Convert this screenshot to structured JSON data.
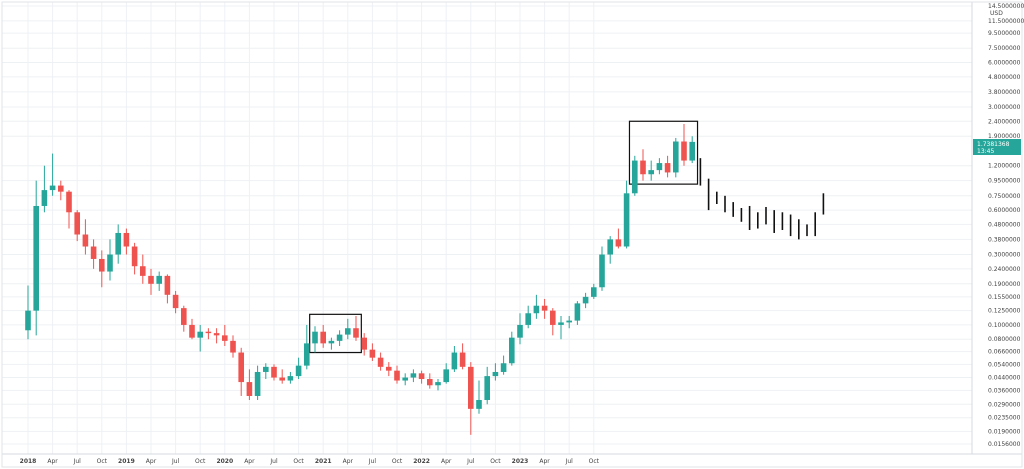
{
  "chart_data": {
    "type": "candlestick",
    "y_scale": "log",
    "ylim": [
      0.0156,
      14.5
    ],
    "y_unit": "USD",
    "y_ticks": [
      {
        "v": 14.5,
        "label": "14.5000000"
      },
      {
        "v": 11.5,
        "label": "11.5000000"
      },
      {
        "v": 9.5,
        "label": "9.5000000"
      },
      {
        "v": 7.5,
        "label": "7.5000000"
      },
      {
        "v": 6.0,
        "label": "6.0000000"
      },
      {
        "v": 4.8,
        "label": "4.8000000"
      },
      {
        "v": 3.8,
        "label": "3.8000000"
      },
      {
        "v": 3.0,
        "label": "3.0000000"
      },
      {
        "v": 2.4,
        "label": "2.4000000"
      },
      {
        "v": 1.9,
        "label": "1.9000000"
      },
      {
        "v": 1.2,
        "label": "1.2000000"
      },
      {
        "v": 0.95,
        "label": "0.9500000"
      },
      {
        "v": 0.75,
        "label": "0.7500000"
      },
      {
        "v": 0.6,
        "label": "0.6000000"
      },
      {
        "v": 0.48,
        "label": "0.4800000"
      },
      {
        "v": 0.38,
        "label": "0.3800000"
      },
      {
        "v": 0.3,
        "label": "0.3000000"
      },
      {
        "v": 0.24,
        "label": "0.2400000"
      },
      {
        "v": 0.19,
        "label": "0.1900000"
      },
      {
        "v": 0.155,
        "label": "0.1550000"
      },
      {
        "v": 0.125,
        "label": "0.1250000"
      },
      {
        "v": 0.1,
        "label": "0.1000000"
      },
      {
        "v": 0.08,
        "label": "0.0800000"
      },
      {
        "v": 0.066,
        "label": "0.0660000"
      },
      {
        "v": 0.054,
        "label": "0.0540000"
      },
      {
        "v": 0.044,
        "label": "0.0440000"
      },
      {
        "v": 0.036,
        "label": "0.0360000"
      },
      {
        "v": 0.029,
        "label": "0.0290000"
      },
      {
        "v": 0.0235,
        "label": "0.0235000"
      },
      {
        "v": 0.019,
        "label": "0.0190000"
      },
      {
        "v": 0.0156,
        "label": "0.0156000"
      }
    ],
    "x_ticks": [
      "2018",
      "Apr",
      "Jul",
      "Oct",
      "2019",
      "Apr",
      "Jul",
      "Oct",
      "2020",
      "Apr",
      "Jul",
      "Oct",
      "2021",
      "Apr",
      "Jul",
      "Oct",
      "2022",
      "Apr",
      "Jul",
      "Oct",
      "2023",
      "Apr",
      "Jul",
      "Oct"
    ],
    "last_price": {
      "value": "1.7381368",
      "sub": "13:45"
    },
    "colors": {
      "up": "#26a69a",
      "down": "#ef5350",
      "frame": "#111111",
      "grid": "#eef1f4",
      "price_tag": "#26a69a",
      "projection": "#111111"
    },
    "candles": [
      {
        "x": 0,
        "o": 0.092,
        "h": 0.185,
        "l": 0.08,
        "c": 0.125
      },
      {
        "x": 1,
        "o": 0.125,
        "h": 0.95,
        "l": 0.085,
        "c": 0.64
      },
      {
        "x": 2,
        "o": 0.64,
        "h": 1.2,
        "l": 0.58,
        "c": 0.82
      },
      {
        "x": 3,
        "o": 0.82,
        "h": 1.45,
        "l": 0.75,
        "c": 0.88
      },
      {
        "x": 4,
        "o": 0.88,
        "h": 0.95,
        "l": 0.7,
        "c": 0.8
      },
      {
        "x": 5,
        "o": 0.8,
        "h": 0.82,
        "l": 0.45,
        "c": 0.58
      },
      {
        "x": 6,
        "o": 0.58,
        "h": 0.6,
        "l": 0.37,
        "c": 0.41
      },
      {
        "x": 7,
        "o": 0.41,
        "h": 0.52,
        "l": 0.3,
        "c": 0.34
      },
      {
        "x": 8,
        "o": 0.34,
        "h": 0.38,
        "l": 0.24,
        "c": 0.28
      },
      {
        "x": 9,
        "o": 0.28,
        "h": 0.32,
        "l": 0.18,
        "c": 0.23
      },
      {
        "x": 10,
        "o": 0.23,
        "h": 0.38,
        "l": 0.2,
        "c": 0.3
      },
      {
        "x": 11,
        "o": 0.3,
        "h": 0.48,
        "l": 0.26,
        "c": 0.42
      },
      {
        "x": 12,
        "o": 0.42,
        "h": 0.45,
        "l": 0.3,
        "c": 0.34
      },
      {
        "x": 13,
        "o": 0.34,
        "h": 0.36,
        "l": 0.22,
        "c": 0.25
      },
      {
        "x": 14,
        "o": 0.25,
        "h": 0.3,
        "l": 0.19,
        "c": 0.215
      },
      {
        "x": 15,
        "o": 0.215,
        "h": 0.24,
        "l": 0.16,
        "c": 0.19
      },
      {
        "x": 16,
        "o": 0.19,
        "h": 0.23,
        "l": 0.17,
        "c": 0.215
      },
      {
        "x": 17,
        "o": 0.215,
        "h": 0.22,
        "l": 0.14,
        "c": 0.16
      },
      {
        "x": 18,
        "o": 0.16,
        "h": 0.17,
        "l": 0.12,
        "c": 0.13
      },
      {
        "x": 19,
        "o": 0.13,
        "h": 0.135,
        "l": 0.09,
        "c": 0.1
      },
      {
        "x": 20,
        "o": 0.1,
        "h": 0.11,
        "l": 0.08,
        "c": 0.082
      },
      {
        "x": 21,
        "o": 0.082,
        "h": 0.1,
        "l": 0.066,
        "c": 0.09
      },
      {
        "x": 22,
        "o": 0.09,
        "h": 0.095,
        "l": 0.08,
        "c": 0.088
      },
      {
        "x": 23,
        "o": 0.088,
        "h": 0.095,
        "l": 0.075,
        "c": 0.085
      },
      {
        "x": 24,
        "o": 0.085,
        "h": 0.1,
        "l": 0.072,
        "c": 0.078
      },
      {
        "x": 25,
        "o": 0.078,
        "h": 0.085,
        "l": 0.06,
        "c": 0.065
      },
      {
        "x": 26,
        "o": 0.065,
        "h": 0.07,
        "l": 0.033,
        "c": 0.041
      },
      {
        "x": 27,
        "o": 0.041,
        "h": 0.05,
        "l": 0.031,
        "c": 0.033
      },
      {
        "x": 28,
        "o": 0.033,
        "h": 0.053,
        "l": 0.031,
        "c": 0.048
      },
      {
        "x": 29,
        "o": 0.048,
        "h": 0.055,
        "l": 0.043,
        "c": 0.052
      },
      {
        "x": 30,
        "o": 0.052,
        "h": 0.054,
        "l": 0.042,
        "c": 0.044
      },
      {
        "x": 31,
        "o": 0.044,
        "h": 0.05,
        "l": 0.04,
        "c": 0.042
      },
      {
        "x": 32,
        "o": 0.042,
        "h": 0.048,
        "l": 0.04,
        "c": 0.045
      },
      {
        "x": 33,
        "o": 0.045,
        "h": 0.06,
        "l": 0.043,
        "c": 0.053
      },
      {
        "x": 34,
        "o": 0.053,
        "h": 0.1,
        "l": 0.05,
        "c": 0.075
      },
      {
        "x": 35,
        "o": 0.075,
        "h": 0.098,
        "l": 0.065,
        "c": 0.09
      },
      {
        "x": 36,
        "o": 0.09,
        "h": 0.1,
        "l": 0.07,
        "c": 0.075
      },
      {
        "x": 37,
        "o": 0.075,
        "h": 0.082,
        "l": 0.068,
        "c": 0.078
      },
      {
        "x": 38,
        "o": 0.078,
        "h": 0.092,
        "l": 0.072,
        "c": 0.086
      },
      {
        "x": 39,
        "o": 0.086,
        "h": 0.11,
        "l": 0.08,
        "c": 0.095
      },
      {
        "x": 40,
        "o": 0.095,
        "h": 0.115,
        "l": 0.078,
        "c": 0.082
      },
      {
        "x": 41,
        "o": 0.082,
        "h": 0.088,
        "l": 0.062,
        "c": 0.068
      },
      {
        "x": 42,
        "o": 0.068,
        "h": 0.075,
        "l": 0.057,
        "c": 0.06
      },
      {
        "x": 43,
        "o": 0.06,
        "h": 0.065,
        "l": 0.049,
        "c": 0.052
      },
      {
        "x": 44,
        "o": 0.052,
        "h": 0.056,
        "l": 0.045,
        "c": 0.049
      },
      {
        "x": 45,
        "o": 0.049,
        "h": 0.053,
        "l": 0.04,
        "c": 0.042
      },
      {
        "x": 46,
        "o": 0.042,
        "h": 0.047,
        "l": 0.039,
        "c": 0.044
      },
      {
        "x": 47,
        "o": 0.044,
        "h": 0.05,
        "l": 0.041,
        "c": 0.047
      },
      {
        "x": 48,
        "o": 0.047,
        "h": 0.049,
        "l": 0.04,
        "c": 0.043
      },
      {
        "x": 49,
        "o": 0.043,
        "h": 0.047,
        "l": 0.037,
        "c": 0.039
      },
      {
        "x": 50,
        "o": 0.039,
        "h": 0.043,
        "l": 0.036,
        "c": 0.041
      },
      {
        "x": 51,
        "o": 0.041,
        "h": 0.055,
        "l": 0.04,
        "c": 0.05
      },
      {
        "x": 52,
        "o": 0.05,
        "h": 0.072,
        "l": 0.048,
        "c": 0.065
      },
      {
        "x": 53,
        "o": 0.065,
        "h": 0.075,
        "l": 0.05,
        "c": 0.052
      },
      {
        "x": 54,
        "o": 0.052,
        "h": 0.056,
        "l": 0.018,
        "c": 0.027
      },
      {
        "x": 55,
        "o": 0.027,
        "h": 0.042,
        "l": 0.025,
        "c": 0.031
      },
      {
        "x": 56,
        "o": 0.031,
        "h": 0.052,
        "l": 0.029,
        "c": 0.045
      },
      {
        "x": 57,
        "o": 0.045,
        "h": 0.055,
        "l": 0.042,
        "c": 0.048
      },
      {
        "x": 58,
        "o": 0.048,
        "h": 0.062,
        "l": 0.046,
        "c": 0.055
      },
      {
        "x": 59,
        "o": 0.055,
        "h": 0.09,
        "l": 0.053,
        "c": 0.082
      },
      {
        "x": 60,
        "o": 0.082,
        "h": 0.12,
        "l": 0.074,
        "c": 0.1
      },
      {
        "x": 61,
        "o": 0.1,
        "h": 0.135,
        "l": 0.095,
        "c": 0.12
      },
      {
        "x": 62,
        "o": 0.12,
        "h": 0.16,
        "l": 0.11,
        "c": 0.135
      },
      {
        "x": 63,
        "o": 0.135,
        "h": 0.15,
        "l": 0.11,
        "c": 0.125
      },
      {
        "x": 64,
        "o": 0.125,
        "h": 0.13,
        "l": 0.085,
        "c": 0.1
      },
      {
        "x": 65,
        "o": 0.1,
        "h": 0.115,
        "l": 0.08,
        "c": 0.104
      },
      {
        "x": 66,
        "o": 0.104,
        "h": 0.115,
        "l": 0.095,
        "c": 0.107
      },
      {
        "x": 67,
        "o": 0.107,
        "h": 0.145,
        "l": 0.1,
        "c": 0.14
      },
      {
        "x": 68,
        "o": 0.14,
        "h": 0.165,
        "l": 0.13,
        "c": 0.155
      },
      {
        "x": 69,
        "o": 0.155,
        "h": 0.19,
        "l": 0.15,
        "c": 0.18
      },
      {
        "x": 70,
        "o": 0.18,
        "h": 0.34,
        "l": 0.17,
        "c": 0.3
      },
      {
        "x": 71,
        "o": 0.3,
        "h": 0.4,
        "l": 0.26,
        "c": 0.38
      },
      {
        "x": 72,
        "o": 0.38,
        "h": 0.45,
        "l": 0.33,
        "c": 0.34
      },
      {
        "x": 73,
        "o": 0.34,
        "h": 0.95,
        "l": 0.33,
        "c": 0.78
      },
      {
        "x": 74,
        "o": 0.78,
        "h": 1.4,
        "l": 0.75,
        "c": 1.3
      },
      {
        "x": 75,
        "o": 1.3,
        "h": 1.55,
        "l": 0.95,
        "c": 1.05
      },
      {
        "x": 76,
        "o": 1.05,
        "h": 1.3,
        "l": 0.95,
        "c": 1.12
      },
      {
        "x": 77,
        "o": 1.12,
        "h": 1.35,
        "l": 1.05,
        "c": 1.25
      },
      {
        "x": 78,
        "o": 1.25,
        "h": 1.4,
        "l": 1.0,
        "c": 1.08
      },
      {
        "x": 79,
        "o": 1.08,
        "h": 1.85,
        "l": 1.0,
        "c": 1.75
      },
      {
        "x": 80,
        "o": 1.75,
        "h": 2.3,
        "l": 1.2,
        "c": 1.3
      },
      {
        "x": 81,
        "o": 1.3,
        "h": 1.9,
        "l": 1.25,
        "c": 1.74
      }
    ],
    "highlight_boxes": [
      {
        "x_from": 35,
        "x_to": 40,
        "y_low": 0.065,
        "y_high": 0.118
      },
      {
        "x_from": 74,
        "x_to": 81,
        "y_low": 0.9,
        "y_high": 2.4
      }
    ],
    "projection_bars": [
      {
        "x": 82,
        "h": 1.35,
        "l": 0.88
      },
      {
        "x": 83,
        "h": 0.98,
        "l": 0.6
      },
      {
        "x": 84,
        "h": 0.8,
        "l": 0.66
      },
      {
        "x": 85,
        "h": 0.75,
        "l": 0.58
      },
      {
        "x": 86,
        "h": 0.68,
        "l": 0.54
      },
      {
        "x": 87,
        "h": 0.62,
        "l": 0.5
      },
      {
        "x": 88,
        "h": 0.64,
        "l": 0.44
      },
      {
        "x": 89,
        "h": 0.58,
        "l": 0.45
      },
      {
        "x": 90,
        "h": 0.63,
        "l": 0.48
      },
      {
        "x": 91,
        "h": 0.6,
        "l": 0.42
      },
      {
        "x": 92,
        "h": 0.58,
        "l": 0.44
      },
      {
        "x": 93,
        "h": 0.56,
        "l": 0.4
      },
      {
        "x": 94,
        "h": 0.52,
        "l": 0.38
      },
      {
        "x": 95,
        "h": 0.48,
        "l": 0.4
      },
      {
        "x": 96,
        "h": 0.58,
        "l": 0.4
      },
      {
        "x": 97,
        "h": 0.78,
        "l": 0.56
      }
    ]
  }
}
